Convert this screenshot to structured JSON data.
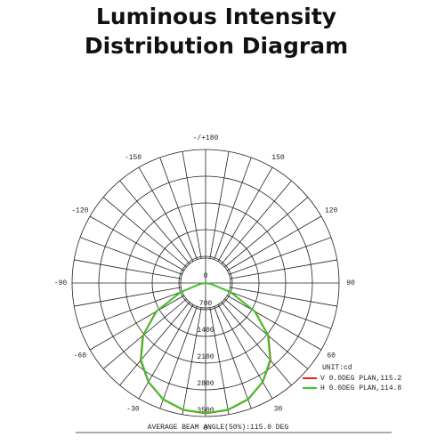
{
  "chart_data": {
    "type": "polar",
    "title": [
      "Luminous Intensity",
      "Distribution Diagram"
    ],
    "theta": [
      -90,
      -80,
      -70,
      -60,
      -50,
      -40,
      -30,
      -20,
      -10,
      0,
      10,
      20,
      30,
      40,
      50,
      60,
      70,
      80,
      90
    ],
    "series": [
      {
        "name": "V 0.0DEG PLAN,115.2",
        "color": "#e8201c",
        "values": [
          0,
          150,
          700,
          1500,
          2150,
          2650,
          3000,
          3250,
          3380,
          3420,
          3380,
          3250,
          3000,
          2650,
          2150,
          1500,
          700,
          150,
          0
        ]
      },
      {
        "name": "H 0.0DEG PLAN,114.8",
        "color": "#2ed12a",
        "values": [
          0,
          140,
          680,
          1480,
          2130,
          2630,
          2990,
          3240,
          3370,
          3410,
          3370,
          3240,
          2990,
          2630,
          2130,
          1480,
          680,
          140,
          0
        ]
      }
    ],
    "rlim": [
      0,
      3500
    ],
    "rticks": [
      0,
      700,
      1400,
      2100,
      2800,
      3500
    ],
    "thetaticks": [
      0,
      30,
      60,
      90,
      120,
      150,
      {
        "value": 180,
        "label": "-/+180"
      },
      -150,
      -120,
      -90,
      -60,
      -30
    ],
    "thetagrid": [
      -170,
      -160,
      -150,
      -140,
      -130,
      -120,
      -110,
      -100,
      -90,
      -80,
      -70,
      -60,
      -50,
      -40,
      -30,
      -20,
      -10,
      0,
      10,
      20,
      30,
      40,
      50,
      60,
      70,
      80,
      90,
      100,
      110,
      120,
      130,
      140,
      150,
      160,
      170,
      180
    ],
    "legend_title": "UNIT:cd",
    "annotation": "AVERAGE BEAM ANGLE(50%):115.0 DEG"
  }
}
